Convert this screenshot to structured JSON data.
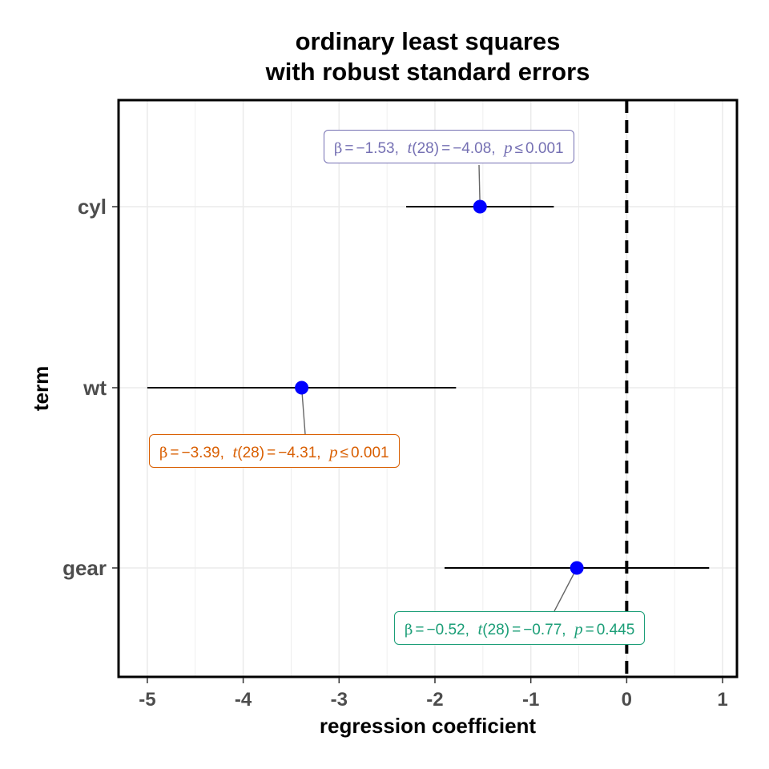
{
  "chart_data": {
    "type": "scatter",
    "title": "ordinary least squares",
    "subtitle": "with robust standard errors",
    "xlabel": "regression coefficient",
    "ylabel": "term",
    "xlim": [
      -5.3,
      1.15
    ],
    "x_ticks": [
      "-5",
      "-4",
      "-3",
      "-2",
      "-1",
      "0",
      "1"
    ],
    "x_tick_values": [
      -5,
      -4,
      -3,
      -2,
      -1,
      0,
      1
    ],
    "reference_line": 0,
    "grid": true,
    "terms": [
      {
        "name": "cyl",
        "estimate": -1.53,
        "conf_low": -2.3,
        "conf_high": -0.76,
        "label": {
          "beta": "−1.53",
          "df": "28",
          "t": "−4.08",
          "p_op": "≤",
          "p": "0.001"
        },
        "color": "#7570b3"
      },
      {
        "name": "wt",
        "estimate": -3.39,
        "conf_low": -5.0,
        "conf_high": -1.78,
        "label": {
          "beta": "−3.39",
          "df": "28",
          "t": "−4.31",
          "p_op": "≤",
          "p": "0.001"
        },
        "color": "#d95f02"
      },
      {
        "name": "gear",
        "estimate": -0.52,
        "conf_low": -1.9,
        "conf_high": 0.86,
        "label": {
          "beta": "−0.52",
          "df": "28",
          "t": "−0.77",
          "p_op": "=",
          "p": "0.445"
        },
        "color": "#1b9e77"
      }
    ]
  },
  "colors": {
    "point": "#0000ff",
    "errorbar": "#000000",
    "zero_line": "#000000",
    "grid": "#ebebeb"
  }
}
